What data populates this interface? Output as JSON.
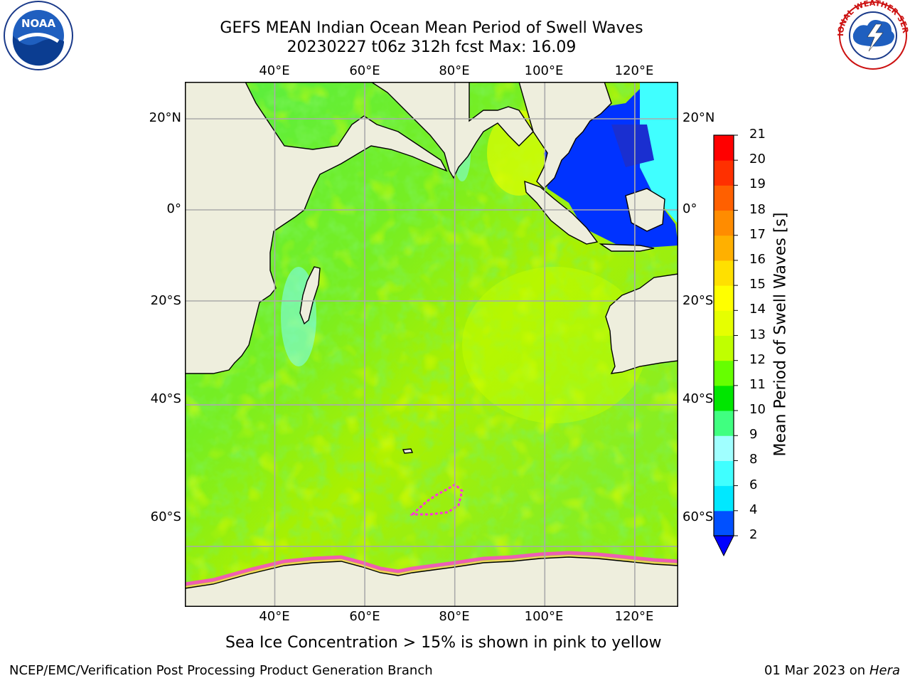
{
  "title_line1": "GEFS MEAN Indian Ocean Mean Period of Swell Waves",
  "title_line2": "20230227 t06z 312h fcst   Max: 16.09",
  "lon_ticks": [
    "40°E",
    "60°E",
    "80°E",
    "100°E",
    "120°E"
  ],
  "lat_ticks": [
    "20°N",
    "0°",
    "20°S",
    "40°S",
    "60°S"
  ],
  "colorbar": {
    "label": "Mean Period of Swell Waves [s]",
    "ticks": [
      "2",
      "4",
      "6",
      "8",
      "9",
      "10",
      "11",
      "12",
      "13",
      "14",
      "15",
      "16",
      "17",
      "18",
      "19",
      "20",
      "21"
    ],
    "colors": [
      "#0050ff",
      "#00e8ff",
      "#40ffff",
      "#a0ffff",
      "#40ff80",
      "#00e600",
      "#66ff00",
      "#c0ff00",
      "#e6ff00",
      "#ffff00",
      "#ffe000",
      "#ffb000",
      "#ff8c00",
      "#ff6000",
      "#ff3000",
      "#ff0000"
    ],
    "extend_color": "#0000ff"
  },
  "caption": "Sea Ice Concentration > 15% is shown in pink to yellow",
  "footer_left": "NCEP/EMC/Verification Post Processing Product Generation Branch",
  "footer_right_date": "01 Mar 2023 on",
  "footer_right_host": "Hera",
  "logo_left_text": "NOAA",
  "logo_right_text": "NATIONAL WEATHER SERVICE",
  "colors": {
    "land": "#eeeedd",
    "ocean_base": "#66ee22",
    "grid": "#aaaaaa"
  }
}
